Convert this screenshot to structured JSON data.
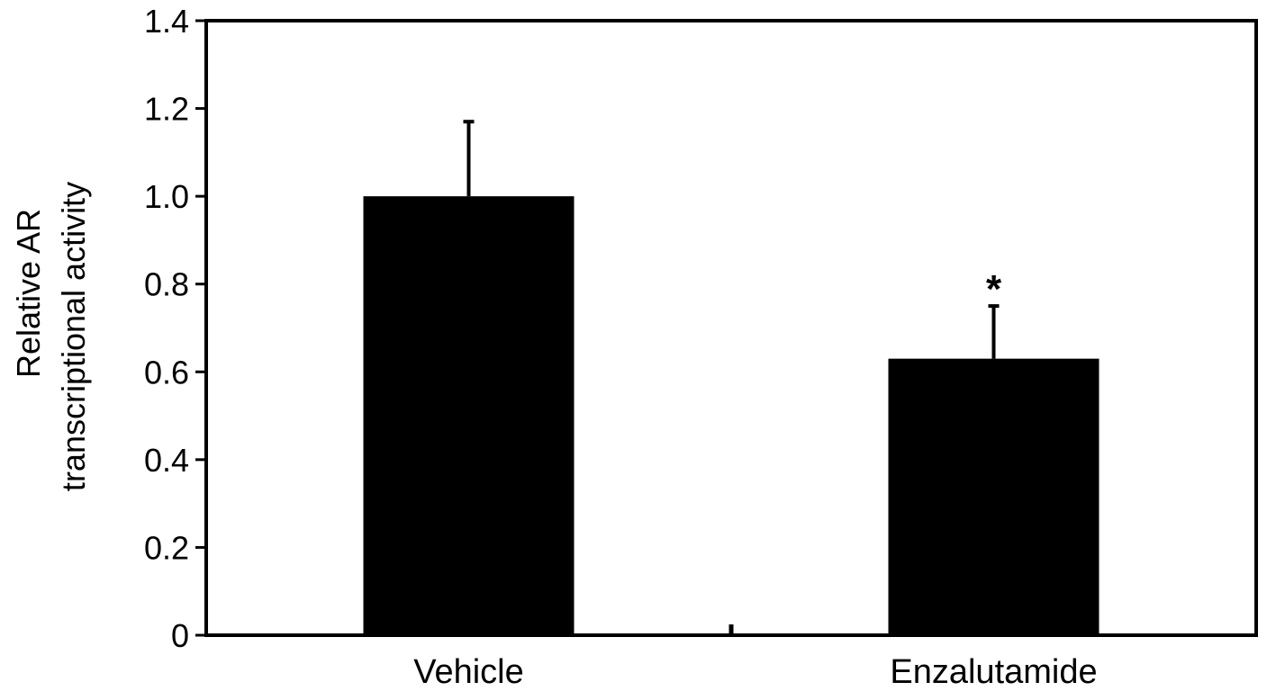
{
  "chart_data": {
    "type": "bar",
    "title": "",
    "xlabel": "",
    "ylabel_lines": [
      "Relative AR",
      "transcriptional activity"
    ],
    "categories": [
      "Vehicle",
      "Enzalutamide"
    ],
    "values": [
      1.0,
      0.63
    ],
    "error_bars": [
      0.17,
      0.12
    ],
    "annotations": [
      "",
      "*"
    ],
    "ylim": [
      0,
      1.4
    ],
    "yticks": [
      0,
      0.2,
      0.4,
      0.6,
      0.8,
      1.0,
      1.2,
      1.4
    ],
    "ytick_labels": [
      "0",
      "0.2",
      "0.4",
      "0.6",
      "0.8",
      "1.0",
      "1.2",
      "1.4"
    ],
    "grid": false,
    "legend": "none",
    "bar_color": "#000000"
  }
}
